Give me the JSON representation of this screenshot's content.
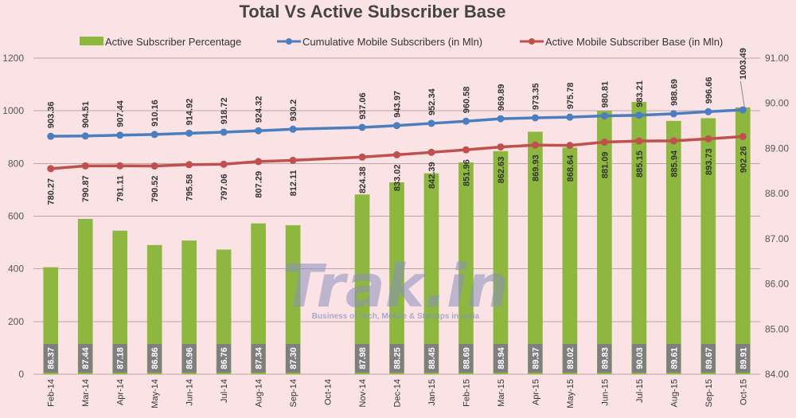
{
  "chart_data": {
    "type": "bar",
    "title": "Total Vs Active Subscriber Base",
    "categories": [
      "Feb-14",
      "Mar-14",
      "Apr-14",
      "May-14",
      "Jun-14",
      "Jul-14",
      "Aug-14",
      "Sep-14",
      "Oct-14",
      "Nov-14",
      "Dec-14",
      "Jan-15",
      "Feb-15",
      "Mar-15",
      "Apr-15",
      "May-15",
      "Jun-15",
      "Jul-15",
      "Aug-15",
      "Sep-15",
      "Oct-15"
    ],
    "series": [
      {
        "name": "Active Subscriber Percentage",
        "type": "bar",
        "axis": "right",
        "color": "#8db73f",
        "values": [
          86.37,
          87.44,
          87.18,
          86.86,
          86.96,
          86.76,
          87.34,
          87.3,
          null,
          87.98,
          88.25,
          88.45,
          88.69,
          88.94,
          89.37,
          89.02,
          89.83,
          90.03,
          89.61,
          89.67,
          89.91
        ]
      },
      {
        "name": "Cumulative Mobile Subscribers (in Mln)",
        "type": "line",
        "axis": "left",
        "color": "#4a7ebf",
        "values": [
          903.36,
          904.51,
          907.44,
          910.16,
          914.92,
          918.72,
          924.32,
          930.2,
          null,
          937.06,
          943.97,
          952.34,
          960.58,
          969.89,
          973.35,
          975.78,
          980.81,
          983.21,
          988.69,
          996.66,
          1003.49
        ]
      },
      {
        "name": "Active Mobile Subscriber Base (in Mln)",
        "type": "line",
        "axis": "left",
        "color": "#c0504d",
        "values": [
          780.27,
          790.87,
          791.11,
          790.52,
          795.58,
          797.06,
          807.29,
          812.11,
          null,
          824.38,
          833.02,
          842.39,
          851.96,
          862.63,
          869.93,
          868.64,
          881.09,
          885.15,
          885.94,
          893.73,
          902.26
        ]
      }
    ],
    "y_left": {
      "min": 0,
      "max": 1200,
      "ticks": [
        "0",
        "200",
        "400",
        "600",
        "800",
        "1000",
        "1200"
      ]
    },
    "y_right": {
      "min": 84,
      "max": 91,
      "ticks": [
        "84.00",
        "85.00",
        "86.00",
        "87.00",
        "88.00",
        "89.00",
        "90.00",
        "91.00"
      ]
    },
    "grid": true,
    "legend_position": "top"
  },
  "watermark": {
    "text": "Trak.in",
    "tagline": "Business of Tech, Mobile & Startups in India"
  }
}
